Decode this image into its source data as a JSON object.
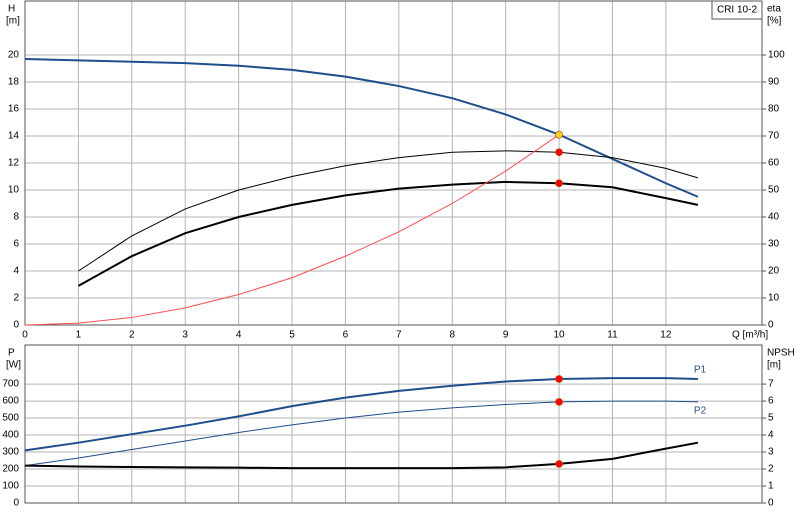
{
  "chart_data": [
    {
      "type": "line",
      "annotation": "CRI 10-2",
      "ylabel": "H",
      "yunit": "[m]",
      "y2label": "eta",
      "y2unit": "[%]",
      "xlabel": "Q [m³/h]",
      "xlim": [
        0,
        13.8
      ],
      "xticks": [
        0,
        1,
        2,
        3,
        4,
        5,
        6,
        7,
        8,
        9,
        10,
        11,
        12
      ],
      "ylim": [
        0,
        24
      ],
      "yticks": [
        0,
        2,
        4,
        6,
        8,
        10,
        12,
        14,
        16,
        18,
        20
      ],
      "y2lim": [
        0,
        120
      ],
      "y2ticks": [
        0,
        10,
        20,
        30,
        40,
        50,
        60,
        70,
        80,
        90,
        100
      ],
      "grid": true,
      "series": [
        {
          "color": "#1f4e8c",
          "line_width": 2,
          "x": [
            0,
            1,
            2,
            3,
            4,
            5,
            6,
            7,
            8,
            9,
            10,
            11,
            12,
            12.6
          ],
          "values": [
            19.7,
            19.6,
            19.5,
            19.4,
            19.2,
            18.9,
            18.4,
            17.7,
            16.8,
            15.6,
            14.1,
            12.3,
            10.5,
            9.5
          ]
        },
        {
          "color": "#000000",
          "line_width": 1,
          "axis": "y2",
          "x": [
            1,
            2,
            3,
            4,
            5,
            6,
            7,
            8,
            9,
            10,
            11,
            12,
            12.6
          ],
          "values": [
            20,
            33,
            43,
            50,
            55,
            59,
            62,
            64,
            64.5,
            64,
            62,
            58,
            54.5
          ]
        },
        {
          "color": "#000000",
          "line_width": 2,
          "axis": "y2",
          "x": [
            1,
            2,
            3,
            4,
            5,
            6,
            7,
            8,
            9,
            10,
            11,
            12,
            12.6
          ],
          "values": [
            14.5,
            25.5,
            34,
            40,
            44.5,
            48,
            50.5,
            52,
            53,
            52.5,
            51,
            47,
            44.5
          ]
        },
        {
          "color": "#ff4d4d",
          "line_width": 1,
          "x": [
            0,
            1,
            2,
            3,
            4,
            5,
            6,
            7,
            8,
            9,
            10
          ],
          "values": [
            0,
            0.14,
            0.56,
            1.27,
            2.26,
            3.5,
            5.1,
            6.9,
            9.0,
            11.4,
            14.1
          ]
        }
      ],
      "points": [
        {
          "x": 10,
          "value": 14.1,
          "color": "#ffd21f"
        },
        {
          "x": 10,
          "value": 64,
          "axis": "y2",
          "color": "#ff0000"
        },
        {
          "x": 10,
          "value": 52.5,
          "axis": "y2",
          "color": "#ff0000"
        }
      ]
    },
    {
      "type": "line",
      "ylabel": "P",
      "yunit": "[W]",
      "y2label": "NPSH",
      "y2unit": "[m]",
      "xlim": [
        0,
        13.8
      ],
      "xticks": [
        0,
        1,
        2,
        3,
        4,
        5,
        6,
        7,
        8,
        9,
        10,
        11,
        12
      ],
      "ylim": [
        0,
        930
      ],
      "yticks": [
        0,
        100,
        200,
        300,
        400,
        500,
        600,
        700
      ],
      "y2lim": [
        0,
        9.3
      ],
      "y2ticks": [
        0,
        1,
        2,
        3,
        4,
        5,
        6,
        7
      ],
      "grid": true,
      "series": [
        {
          "name": "P1",
          "color": "#1f4e8c",
          "line_width": 2,
          "x": [
            0,
            1,
            2,
            3,
            4,
            5,
            6,
            7,
            8,
            9,
            10,
            11,
            12,
            12.6
          ],
          "values": [
            310,
            355,
            405,
            455,
            510,
            570,
            620,
            660,
            690,
            715,
            730,
            735,
            735,
            730
          ]
        },
        {
          "name": "P2",
          "color": "#1f4e8c",
          "line_width": 1,
          "x": [
            0,
            1,
            2,
            3,
            4,
            5,
            6,
            7,
            8,
            9,
            10,
            11,
            12,
            12.6
          ],
          "values": [
            220,
            265,
            315,
            365,
            415,
            460,
            500,
            535,
            560,
            580,
            595,
            600,
            600,
            595
          ]
        },
        {
          "color": "#000000",
          "line_width": 2,
          "axis": "y2",
          "x": [
            0,
            1,
            2,
            3,
            4,
            5,
            6,
            7,
            8,
            9,
            10,
            11,
            12,
            12.6
          ],
          "values": [
            2.2,
            2.15,
            2.12,
            2.1,
            2.08,
            2.05,
            2.05,
            2.05,
            2.05,
            2.1,
            2.3,
            2.6,
            3.2,
            3.55
          ]
        }
      ],
      "points": [
        {
          "x": 10,
          "value": 730,
          "color": "#ff0000"
        },
        {
          "x": 10,
          "value": 595,
          "color": "#ff0000"
        },
        {
          "x": 10,
          "value": 2.3,
          "axis": "y2",
          "color": "#ff0000"
        }
      ]
    }
  ]
}
